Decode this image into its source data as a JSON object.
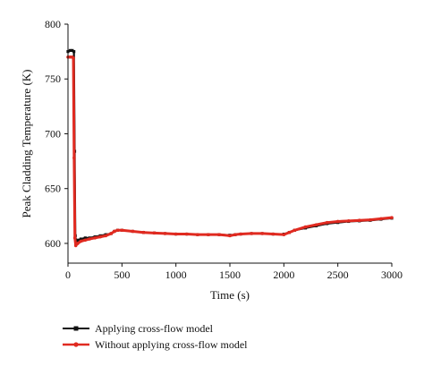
{
  "chart_data": {
    "type": "line",
    "title": "",
    "xlabel": "Time (s)",
    "ylabel": "Peak Cladding Temperature (K)",
    "xlim": [
      0,
      3000
    ],
    "ylim": [
      582,
      800
    ],
    "x_ticks": [
      0,
      500,
      1000,
      1500,
      2000,
      2500,
      3000
    ],
    "y_ticks": [
      600,
      650,
      700,
      750,
      800
    ],
    "grid": false,
    "legend_position": "bottom-left",
    "series": [
      {
        "name": "Applying cross-flow model",
        "color": "#111111",
        "marker": "square",
        "points": [
          [
            0,
            775
          ],
          [
            20,
            776
          ],
          [
            40,
            776
          ],
          [
            55,
            775
          ],
          [
            62,
            684
          ],
          [
            68,
            607
          ],
          [
            78,
            601
          ],
          [
            90,
            603
          ],
          [
            120,
            604
          ],
          [
            160,
            605
          ],
          [
            200,
            605
          ],
          [
            250,
            606
          ],
          [
            300,
            607
          ],
          [
            350,
            608
          ],
          [
            400,
            609
          ],
          [
            430,
            611
          ],
          [
            460,
            612
          ],
          [
            500,
            612
          ],
          [
            600,
            611
          ],
          [
            700,
            610
          ],
          [
            800,
            609.5
          ],
          [
            900,
            609
          ],
          [
            1000,
            608.5
          ],
          [
            1100,
            608.5
          ],
          [
            1200,
            608
          ],
          [
            1300,
            608
          ],
          [
            1400,
            608
          ],
          [
            1500,
            607.5
          ],
          [
            1550,
            608
          ],
          [
            1600,
            608.5
          ],
          [
            1700,
            609
          ],
          [
            1800,
            609
          ],
          [
            1900,
            608.5
          ],
          [
            2000,
            608.5
          ],
          [
            2050,
            610
          ],
          [
            2100,
            612
          ],
          [
            2200,
            614
          ],
          [
            2300,
            616
          ],
          [
            2400,
            618
          ],
          [
            2500,
            619
          ],
          [
            2600,
            620
          ],
          [
            2700,
            620.5
          ],
          [
            2800,
            621
          ],
          [
            2900,
            622
          ],
          [
            3000,
            623
          ]
        ]
      },
      {
        "name": "Without applying cross-flow model",
        "color": "#e02a20",
        "marker": "circle",
        "points": [
          [
            0,
            770
          ],
          [
            20,
            770
          ],
          [
            40,
            770
          ],
          [
            50,
            769
          ],
          [
            57,
            678
          ],
          [
            64,
            605
          ],
          [
            72,
            598
          ],
          [
            90,
            600
          ],
          [
            120,
            602
          ],
          [
            160,
            603
          ],
          [
            200,
            604
          ],
          [
            250,
            605
          ],
          [
            300,
            606
          ],
          [
            350,
            607
          ],
          [
            400,
            609
          ],
          [
            430,
            611
          ],
          [
            460,
            612
          ],
          [
            500,
            612
          ],
          [
            600,
            611
          ],
          [
            700,
            610
          ],
          [
            800,
            609.5
          ],
          [
            900,
            609
          ],
          [
            1000,
            608.5
          ],
          [
            1100,
            608.5
          ],
          [
            1200,
            608
          ],
          [
            1300,
            608
          ],
          [
            1400,
            608
          ],
          [
            1500,
            607
          ],
          [
            1550,
            608
          ],
          [
            1600,
            608.5
          ],
          [
            1700,
            609
          ],
          [
            1800,
            609
          ],
          [
            1900,
            608.5
          ],
          [
            2000,
            608
          ],
          [
            2050,
            610
          ],
          [
            2100,
            612
          ],
          [
            2200,
            615
          ],
          [
            2300,
            617
          ],
          [
            2400,
            619
          ],
          [
            2500,
            620
          ],
          [
            2600,
            620.5
          ],
          [
            2700,
            621
          ],
          [
            2800,
            621.5
          ],
          [
            2900,
            622.5
          ],
          [
            3000,
            623.5
          ]
        ]
      }
    ]
  }
}
